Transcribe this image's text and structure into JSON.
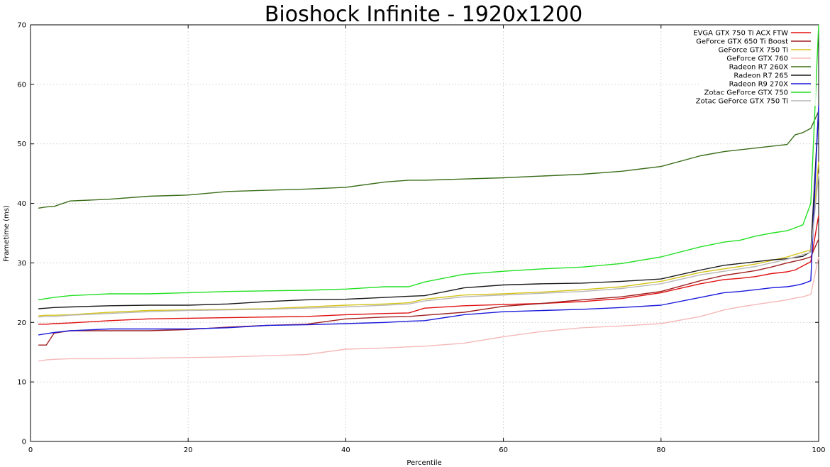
{
  "chart_data": {
    "type": "line",
    "title": "Bioshock Infinite - 1920x1200",
    "xlabel": "Percentile",
    "ylabel": "Frametime (ms)",
    "xlim": [
      0,
      100
    ],
    "ylim": [
      0,
      70
    ],
    "xticks": [
      0,
      20,
      40,
      60,
      80,
      100
    ],
    "yticks": [
      0,
      10,
      20,
      30,
      40,
      50,
      60,
      70
    ],
    "grid": true,
    "legend_position": "top-right",
    "x": [
      1,
      2,
      3,
      5,
      10,
      15,
      20,
      25,
      30,
      35,
      40,
      45,
      48,
      50,
      55,
      60,
      65,
      70,
      75,
      80,
      85,
      88,
      90,
      92,
      94,
      96,
      97,
      98,
      99,
      100
    ],
    "series": [
      {
        "name": "EVGA GTX 750 Ti ACX FTW",
        "color": "#e01010",
        "values": [
          19.7,
          19.7,
          19.8,
          19.9,
          20.3,
          20.6,
          20.7,
          20.8,
          20.9,
          21.0,
          21.3,
          21.5,
          21.6,
          22.4,
          22.8,
          23.0,
          23.2,
          23.5,
          24.0,
          25.0,
          26.5,
          27.2,
          27.4,
          27.7,
          28.2,
          28.5,
          28.8,
          29.5,
          30.2,
          38.0
        ]
      },
      {
        "name": "GeForce GTX 650 Ti Boost",
        "color": "#a02020",
        "values": [
          16.2,
          16.2,
          18.2,
          18.6,
          18.6,
          18.6,
          18.8,
          19.2,
          19.5,
          19.7,
          20.6,
          20.9,
          21.0,
          21.2,
          21.7,
          22.7,
          23.2,
          23.8,
          24.3,
          25.2,
          27.0,
          27.9,
          28.3,
          28.7,
          29.3,
          30.0,
          30.3,
          30.6,
          31.0,
          34.0
        ]
      },
      {
        "name": "GeForce GTX 750 Ti",
        "color": "#d6c41a",
        "values": [
          21.1,
          21.2,
          21.2,
          21.3,
          21.7,
          22.0,
          22.1,
          22.2,
          22.3,
          22.6,
          22.9,
          23.1,
          23.3,
          23.9,
          24.6,
          24.8,
          25.1,
          25.5,
          26.0,
          26.9,
          28.4,
          29.0,
          29.4,
          29.8,
          30.4,
          31.0,
          31.4,
          31.8,
          32.2,
          47.0
        ]
      },
      {
        "name": "GeForce GTX 760",
        "color": "#f5b8b8",
        "values": [
          13.5,
          13.7,
          13.8,
          13.9,
          13.9,
          14.0,
          14.1,
          14.2,
          14.4,
          14.6,
          15.5,
          15.7,
          15.9,
          16.0,
          16.5,
          17.6,
          18.5,
          19.1,
          19.4,
          19.8,
          21.0,
          22.1,
          22.6,
          23.0,
          23.4,
          23.8,
          24.1,
          24.3,
          24.7,
          31.0
        ]
      },
      {
        "name": "Radeon R7 260X",
        "color": "#3a6e1a",
        "values": [
          39.2,
          39.4,
          39.5,
          40.4,
          40.7,
          41.2,
          41.4,
          42.0,
          42.2,
          42.4,
          42.7,
          43.6,
          43.9,
          43.9,
          44.1,
          44.3,
          44.6,
          44.9,
          45.4,
          46.2,
          48.0,
          48.7,
          49.0,
          49.3,
          49.6,
          49.9,
          51.5,
          51.9,
          52.6,
          55.5
        ]
      },
      {
        "name": "Radeon R7 265",
        "color": "#1a1a1a",
        "values": [
          22.3,
          22.4,
          22.5,
          22.6,
          22.8,
          22.9,
          22.9,
          23.1,
          23.5,
          23.8,
          23.9,
          24.2,
          24.4,
          24.5,
          25.8,
          26.3,
          26.5,
          26.6,
          26.9,
          27.3,
          28.8,
          29.6,
          29.9,
          30.2,
          30.5,
          30.7,
          30.9,
          31.1,
          31.9,
          56.0
        ]
      },
      {
        "name": "Radeon R9 270X",
        "color": "#1a1adc",
        "values": [
          17.9,
          18.1,
          18.3,
          18.6,
          18.9,
          18.9,
          18.9,
          19.1,
          19.5,
          19.6,
          19.8,
          20.0,
          20.2,
          20.3,
          21.3,
          21.8,
          22.0,
          22.2,
          22.5,
          22.9,
          24.2,
          25.0,
          25.2,
          25.5,
          25.8,
          26.0,
          26.2,
          26.5,
          27.0,
          56.5
        ]
      },
      {
        "name": "Zotac GeForce GTX 750",
        "color": "#22e022",
        "values": [
          23.8,
          24.0,
          24.2,
          24.5,
          24.8,
          24.8,
          25.0,
          25.2,
          25.3,
          25.4,
          25.6,
          26.0,
          26.0,
          26.8,
          28.1,
          28.6,
          29.0,
          29.3,
          29.9,
          31.0,
          32.7,
          33.5,
          33.8,
          34.5,
          35.0,
          35.4,
          35.9,
          36.4,
          40.0,
          70.0
        ]
      },
      {
        "name": "Zotac GeForce GTX 750 Ti",
        "color": "#b8b8b8",
        "values": [
          20.9,
          21.0,
          21.0,
          21.2,
          21.5,
          21.8,
          22.0,
          22.1,
          22.2,
          22.4,
          22.6,
          22.9,
          23.1,
          23.6,
          24.3,
          24.6,
          24.9,
          25.2,
          25.7,
          26.5,
          28.0,
          28.6,
          29.0,
          29.4,
          30.0,
          30.6,
          31.0,
          31.4,
          31.8,
          45.0
        ]
      }
    ]
  }
}
